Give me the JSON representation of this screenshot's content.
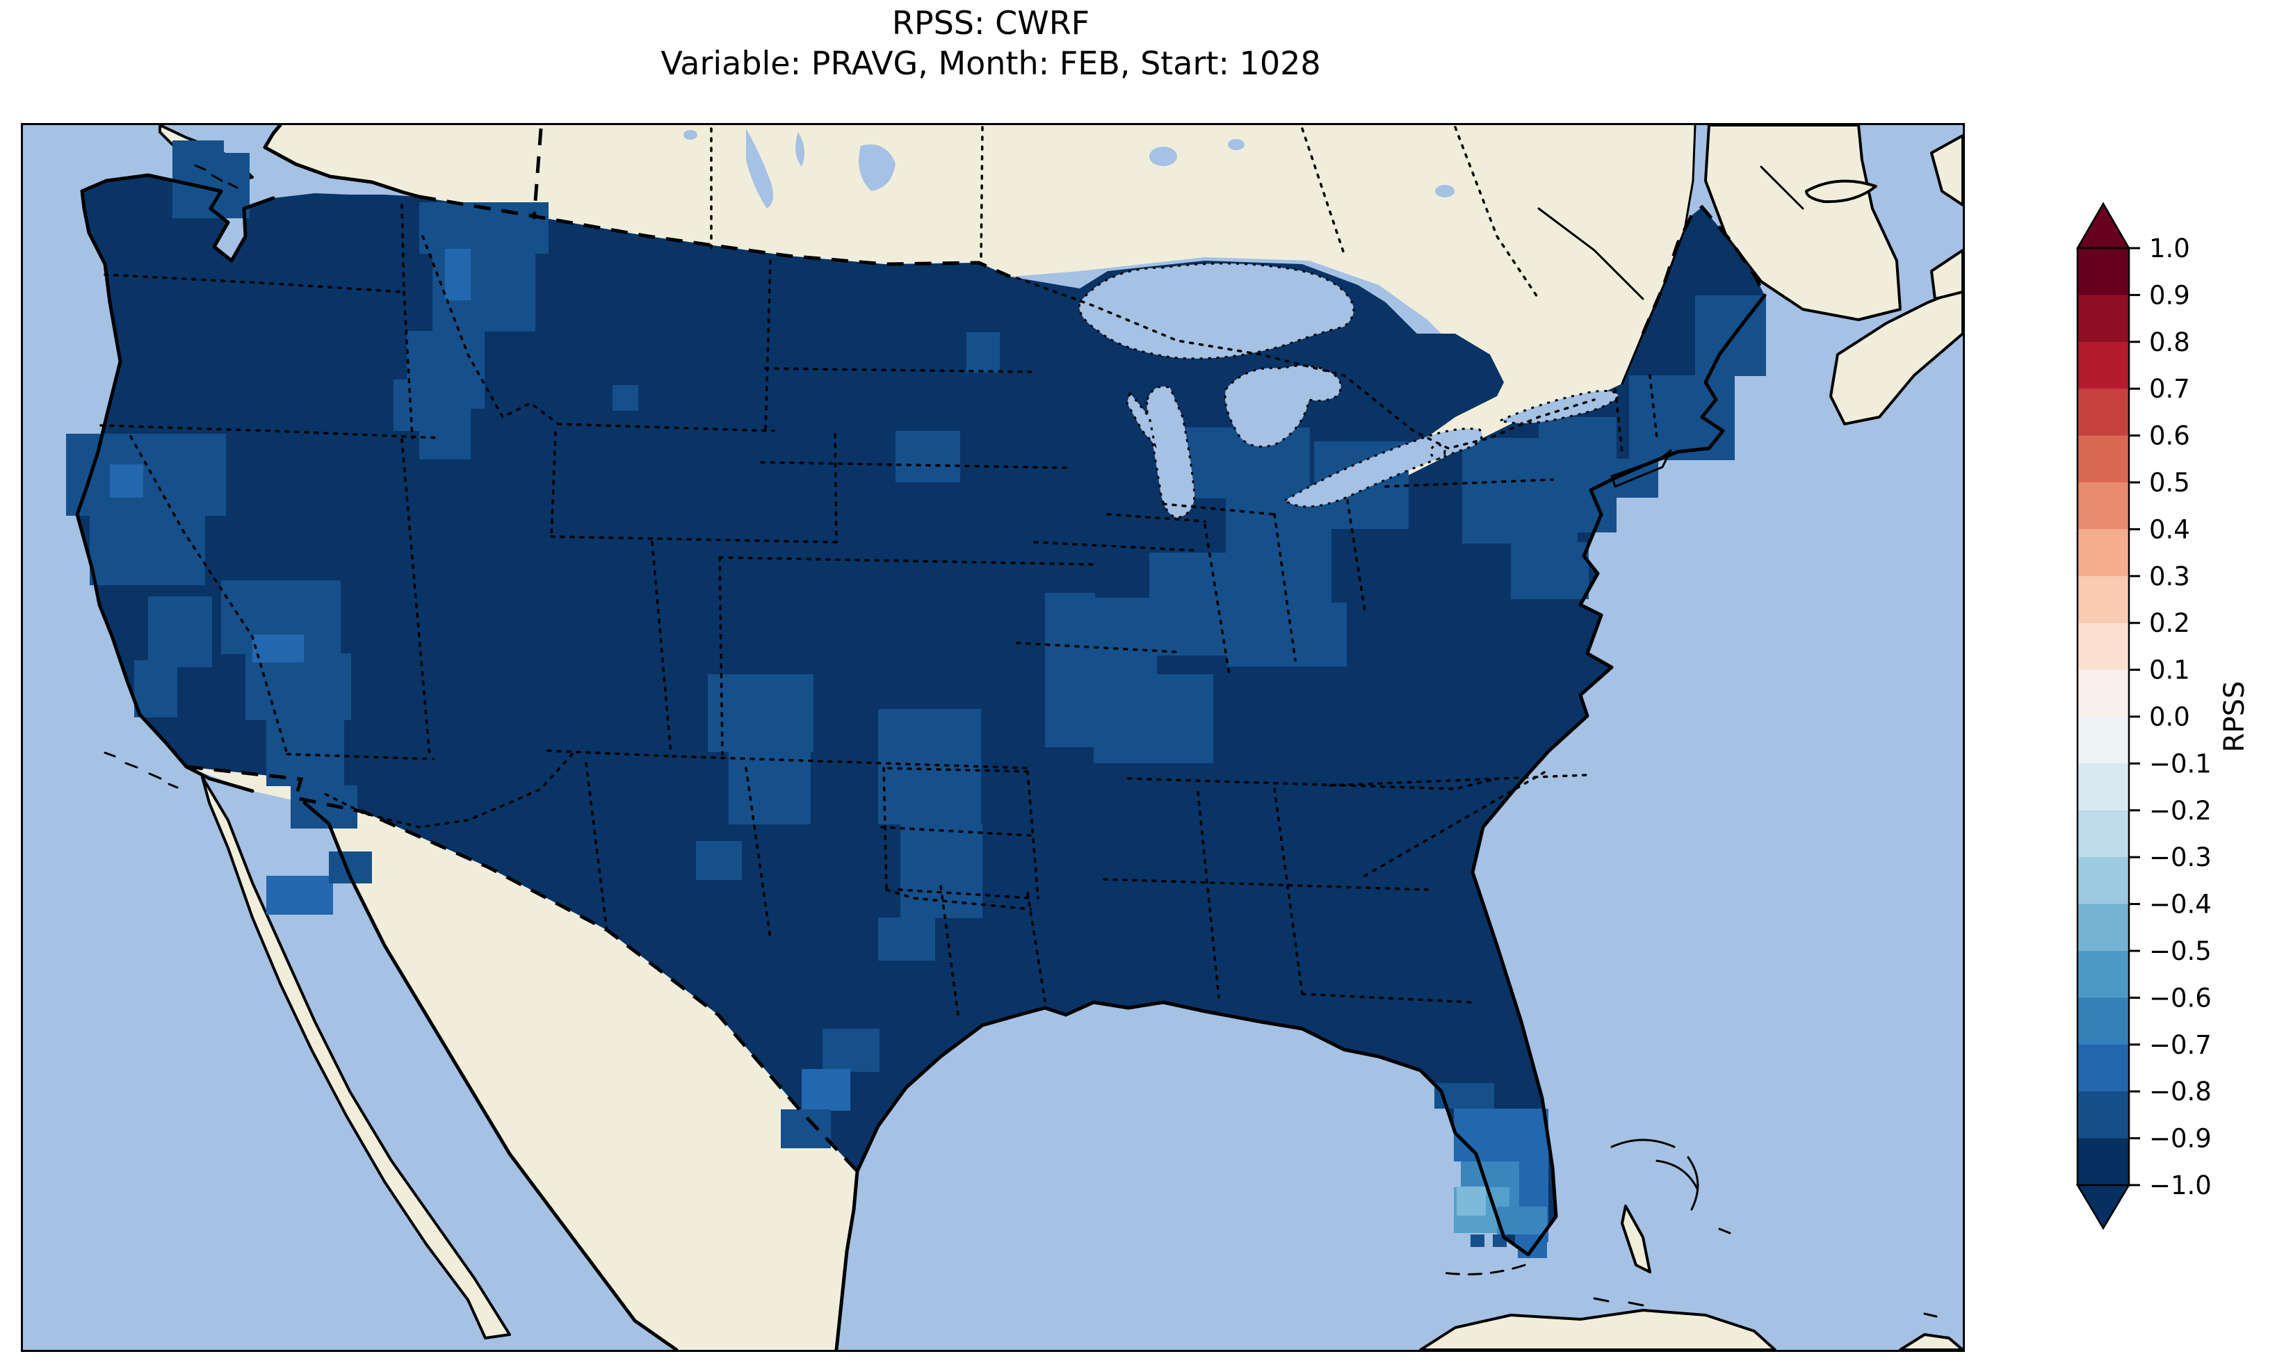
{
  "title": {
    "line1": "RPSS: CWRF",
    "line2": "Variable: PRAVG, Month: FEB, Start: 1028"
  },
  "colorbar": {
    "label": "RPSS",
    "ticks": [
      "1.0",
      "0.9",
      "0.8",
      "0.7",
      "0.6",
      "0.5",
      "0.4",
      "0.3",
      "0.2",
      "0.1",
      "0.0",
      "−0.1",
      "−0.2",
      "−0.3",
      "−0.4",
      "−0.5",
      "−0.6",
      "−0.7",
      "−0.8",
      "−0.9",
      "−1.0"
    ],
    "segments_top_to_bottom": [
      "#67001f",
      "#8f0d25",
      "#b41c2d",
      "#c7423f",
      "#d96853",
      "#e98b6e",
      "#f5ae8d",
      "#facab1",
      "#fce1d1",
      "#f9f0eb",
      "#edf2f5",
      "#d9e9f1",
      "#bddbea",
      "#9ccae1",
      "#75b2d4",
      "#4c99c6",
      "#3580b9",
      "#2267ad",
      "#144f88",
      "#053061"
    ],
    "over_color": "#67001f",
    "under_color": "#053061"
  },
  "map": {
    "ocean_color": "#a5c1e4",
    "land_color": "#f0eedb",
    "outline_color": "#000000",
    "levels": {
      "m10": "#0a3466",
      "m08": "#16508b",
      "m07": "#2368ae",
      "m06": "#3a86bc",
      "m05": "#55a0ca",
      "m04": "#7db9d9"
    },
    "cells": [
      [
        215,
        22,
        74,
        112,
        "m08"
      ],
      [
        289,
        40,
        37,
        94,
        "m08"
      ],
      [
        570,
        111,
        186,
        74,
        "m08"
      ],
      [
        589,
        185,
        148,
        112,
        "m08"
      ],
      [
        552,
        296,
        112,
        112,
        "m08"
      ],
      [
        607,
        178,
        37,
        74,
        "m07"
      ],
      [
        570,
        407,
        74,
        74,
        "m08"
      ],
      [
        533,
        366,
        37,
        74,
        "m08"
      ],
      [
        848,
        374,
        37,
        37,
        "m08"
      ],
      [
        1255,
        440,
        93,
        74,
        "m08"
      ],
      [
        1357,
        298,
        48,
        58,
        "m08"
      ],
      [
        62,
        444,
        230,
        118,
        "m08"
      ],
      [
        96,
        562,
        166,
        100,
        "m08"
      ],
      [
        125,
        488,
        48,
        48,
        "m07"
      ],
      [
        180,
        678,
        92,
        102,
        "m08"
      ],
      [
        160,
        770,
        62,
        82,
        "m08"
      ],
      [
        285,
        655,
        172,
        106,
        "m08"
      ],
      [
        320,
        760,
        152,
        96,
        "m08"
      ],
      [
        330,
        733,
        74,
        40,
        "m07"
      ],
      [
        350,
        855,
        112,
        96,
        "m08"
      ],
      [
        385,
        950,
        96,
        62,
        "m08"
      ],
      [
        350,
        1080,
        96,
        56,
        "m07"
      ],
      [
        440,
        1045,
        62,
        46,
        "m08"
      ],
      [
        985,
        790,
        152,
        112,
        "m08"
      ],
      [
        1015,
        900,
        118,
        106,
        "m08"
      ],
      [
        968,
        1030,
        66,
        56,
        "m08"
      ],
      [
        1230,
        840,
        148,
        166,
        "m08"
      ],
      [
        1262,
        1005,
        118,
        136,
        "m08"
      ],
      [
        1230,
        1140,
        82,
        62,
        "m08"
      ],
      [
        1470,
        673,
        72,
        222,
        "m08"
      ],
      [
        1535,
        680,
        96,
        118,
        "m08"
      ],
      [
        1540,
        790,
        172,
        128,
        "m08"
      ],
      [
        1665,
        435,
        186,
        102,
        "m08"
      ],
      [
        1730,
        535,
        152,
        152,
        "m08"
      ],
      [
        1620,
        615,
        118,
        148,
        "m08"
      ],
      [
        1857,
        455,
        136,
        126,
        "m08"
      ],
      [
        1732,
        687,
        172,
        92,
        "m08"
      ],
      [
        2070,
        450,
        166,
        152,
        "m08"
      ],
      [
        2140,
        600,
        112,
        82,
        "m08"
      ],
      [
        2180,
        420,
        112,
        166,
        "m08"
      ],
      [
        2310,
        360,
        152,
        122,
        "m08"
      ],
      [
        2405,
        245,
        102,
        116,
        "m08"
      ],
      [
        2270,
        480,
        82,
        56,
        "m08"
      ],
      [
        2430,
        280,
        76,
        76,
        "m08"
      ],
      [
        1150,
        1300,
        82,
        62,
        "m08"
      ],
      [
        1120,
        1358,
        70,
        60,
        "m07"
      ],
      [
        1090,
        1416,
        72,
        56,
        "m08"
      ],
      [
        2030,
        1378,
        86,
        37,
        "m08"
      ],
      [
        2058,
        1415,
        96,
        76,
        "m07"
      ],
      [
        2150,
        1415,
        44,
        192,
        "m07"
      ],
      [
        2068,
        1491,
        76,
        37,
        "m06"
      ],
      [
        2100,
        1491,
        52,
        76,
        "m06"
      ],
      [
        2058,
        1528,
        80,
        66,
        "m05"
      ],
      [
        2062,
        1527,
        42,
        42,
        "m04"
      ],
      [
        2120,
        1556,
        72,
        40,
        "m06"
      ],
      [
        2150,
        1600,
        42,
        30,
        "m07"
      ],
      [
        2082,
        1596,
        20,
        18,
        "m08"
      ],
      [
        2114,
        1596,
        20,
        18,
        "m08"
      ],
      [
        2146,
        1596,
        20,
        18,
        "m07"
      ]
    ]
  },
  "chart_data": {
    "type": "heatmap",
    "title": "RPSS: CWRF",
    "subtitle": "Variable: PRAVG, Month: FEB, Start: 1028",
    "colorbar_label": "RPSS",
    "colormap": "RdBu_r, discrete 20 bins, extended arrows both ends",
    "levels": [
      -1.0,
      -0.9,
      -0.8,
      -0.7,
      -0.6,
      -0.5,
      -0.4,
      -0.3,
      -0.2,
      -0.1,
      0.0,
      0.1,
      0.2,
      0.3,
      0.4,
      0.5,
      0.6,
      0.7,
      0.8,
      0.9,
      1.0
    ],
    "extent": "Continental United States on a Lambert-type projection; southern Canada, northern Mexico, Baja California, Cuba and the Bahamas shown as unshaded basemap",
    "observations": [
      {
        "region": "Most of the continental US",
        "rpss": "≤ −0.9 (darkest blue)"
      },
      {
        "region": "Northern Idaho panhandle / NW Montana and NW Washington",
        "rpss": "−0.9 to −0.7"
      },
      {
        "region": "Northern California coast ranges",
        "rpss": "−0.9 to −0.7"
      },
      {
        "region": "Southern Nevada / Arizona border region",
        "rpss": "−0.9 to −0.7"
      },
      {
        "region": "SE Colorado–Kansas border",
        "rpss": "−0.9 to −0.8"
      },
      {
        "region": "Southern Missouri / northern Arkansas and S Illinois",
        "rpss": "−0.9 to −0.8"
      },
      {
        "region": "Lower Michigan, Indiana, Ohio, W Pennsylvania, upstate New York, coastal New England and Maine",
        "rpss": "−0.9 to −0.8"
      },
      {
        "region": "South Texas (Rio Grande Valley)",
        "rpss": "−0.9 to −0.7"
      },
      {
        "region": "Florida peninsula",
        "rpss": "−0.8 near the panhandle improving to about −0.4 in the far south"
      },
      {
        "region": "Entire domain",
        "rpss": "no positive RPSS values anywhere"
      }
    ],
    "legend_position": "vertical colorbar at right, ticks every 0.1 from −1.0 to 1.0"
  }
}
